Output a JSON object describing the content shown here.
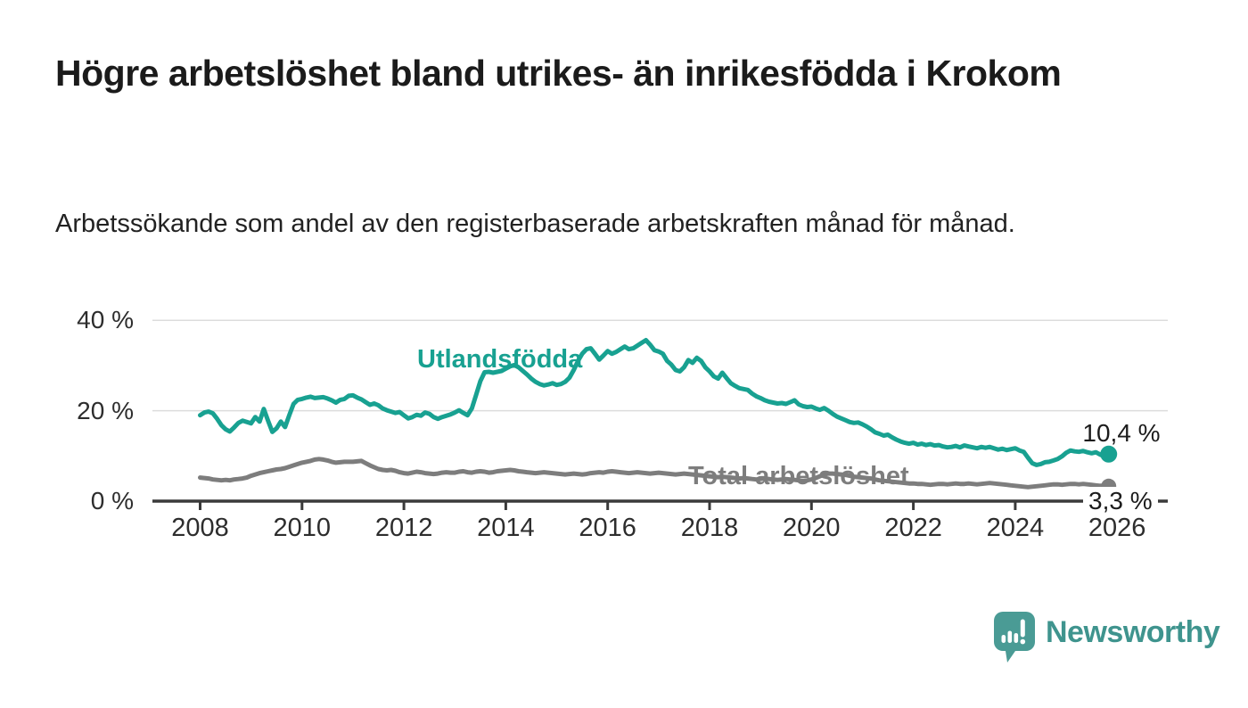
{
  "header": {
    "title": "Högre arbetslöshet bland utrikes- än inrikesfödda i Krokom",
    "subtitle": "Arbetssökande som andel av den registerbaserade arbetskraften månad för månad."
  },
  "chart_data": {
    "type": "line",
    "title": "Högre arbetslöshet bland utrikes- än inrikesfödda i Krokom",
    "subtitle": "Arbetssökande som andel av den registerbaserade arbetskraften månad för månad.",
    "unit": "%",
    "frequency": "monthly",
    "x_start": "2008-01",
    "x_end": "2025-11",
    "x_ticks": [
      2008,
      2010,
      2012,
      2014,
      2016,
      2018,
      2020,
      2022,
      2024,
      2026
    ],
    "y_ticks": [
      {
        "value": 0,
        "label": "0 %"
      },
      {
        "value": 20,
        "label": "20 %"
      },
      {
        "value": 40,
        "label": "40 %"
      }
    ],
    "ylim": [
      0,
      43
    ],
    "grid": "horizontal",
    "legend_position": "inline-labels",
    "axis_color": "#3a3a3a",
    "gridline_color": "#dcdcdc",
    "series": [
      {
        "name": "Utlandsfödda",
        "color": "#18a191",
        "end_value": 10.4,
        "end_label": "10,4 %",
        "values": [
          19.0,
          19.6,
          19.8,
          19.4,
          18.2,
          16.8,
          15.9,
          15.4,
          16.3,
          17.3,
          17.8,
          17.5,
          17.2,
          18.6,
          17.6,
          20.4,
          17.8,
          15.3,
          16.1,
          17.6,
          16.4,
          19.0,
          21.5,
          22.4,
          22.6,
          22.9,
          23.1,
          22.8,
          22.9,
          23.0,
          22.7,
          22.3,
          21.8,
          22.4,
          22.6,
          23.3,
          23.4,
          22.9,
          22.5,
          21.9,
          21.3,
          21.6,
          21.2,
          20.5,
          20.1,
          19.8,
          19.5,
          19.7,
          19.0,
          18.3,
          18.6,
          19.1,
          18.9,
          19.6,
          19.3,
          18.6,
          18.2,
          18.6,
          18.9,
          19.2,
          19.6,
          20.1,
          19.5,
          19.0,
          20.5,
          23.5,
          26.5,
          28.5,
          28.6,
          28.4,
          28.6,
          28.8,
          29.3,
          29.8,
          30.1,
          29.6,
          28.8,
          28.0,
          27.1,
          26.4,
          25.9,
          25.6,
          25.8,
          26.1,
          25.7,
          25.9,
          26.4,
          27.3,
          29.0,
          31.0,
          32.6,
          33.6,
          33.8,
          32.6,
          31.3,
          32.2,
          33.2,
          32.6,
          33.0,
          33.6,
          34.2,
          33.6,
          33.8,
          34.4,
          35.0,
          35.6,
          34.6,
          33.4,
          33.1,
          32.6,
          31.0,
          30.2,
          29.0,
          28.7,
          29.6,
          31.2,
          30.6,
          31.7,
          31.0,
          29.6,
          28.7,
          27.6,
          27.1,
          28.4,
          27.2,
          26.1,
          25.5,
          25.0,
          24.8,
          24.6,
          23.8,
          23.2,
          22.8,
          22.3,
          22.0,
          21.8,
          21.6,
          21.7,
          21.5,
          21.9,
          22.3,
          21.4,
          21.0,
          20.8,
          20.9,
          20.5,
          20.2,
          20.6,
          20.0,
          19.3,
          18.7,
          18.3,
          17.9,
          17.5,
          17.3,
          17.4,
          17.0,
          16.5,
          15.9,
          15.2,
          14.9,
          14.5,
          14.7,
          14.1,
          13.6,
          13.2,
          12.9,
          12.7,
          12.9,
          12.5,
          12.7,
          12.4,
          12.6,
          12.3,
          12.4,
          12.1,
          11.9,
          12.0,
          12.2,
          11.9,
          12.3,
          12.1,
          11.9,
          11.7,
          12.0,
          11.8,
          12.0,
          11.7,
          11.4,
          11.6,
          11.3,
          11.5,
          11.7,
          11.2,
          10.9,
          9.6,
          8.4,
          8.0,
          8.2,
          8.6,
          8.7,
          9.0,
          9.3,
          9.9,
          10.7,
          11.2,
          11.0,
          10.9,
          11.1,
          10.8,
          10.6,
          10.8,
          10.3,
          9.9,
          10.4
        ]
      },
      {
        "name": "Total arbetslöshet",
        "color": "#7d7d7d",
        "end_value": 3.3,
        "end_label": "3,3 %",
        "values": [
          5.2,
          5.1,
          5.0,
          4.8,
          4.7,
          4.6,
          4.7,
          4.6,
          4.8,
          4.9,
          5.0,
          5.2,
          5.6,
          5.9,
          6.2,
          6.4,
          6.6,
          6.8,
          7.0,
          7.1,
          7.3,
          7.6,
          7.9,
          8.2,
          8.5,
          8.7,
          8.9,
          9.2,
          9.3,
          9.2,
          9.0,
          8.7,
          8.5,
          8.6,
          8.7,
          8.7,
          8.7,
          8.8,
          8.9,
          8.4,
          7.9,
          7.5,
          7.1,
          6.9,
          6.8,
          6.9,
          6.7,
          6.4,
          6.2,
          6.1,
          6.3,
          6.5,
          6.4,
          6.2,
          6.1,
          6.0,
          6.1,
          6.3,
          6.4,
          6.3,
          6.3,
          6.5,
          6.6,
          6.4,
          6.3,
          6.5,
          6.6,
          6.5,
          6.3,
          6.4,
          6.6,
          6.7,
          6.8,
          6.9,
          6.8,
          6.6,
          6.5,
          6.4,
          6.3,
          6.2,
          6.3,
          6.4,
          6.3,
          6.2,
          6.1,
          6.0,
          5.9,
          6.0,
          6.1,
          6.0,
          5.9,
          6.0,
          6.2,
          6.3,
          6.4,
          6.3,
          6.5,
          6.6,
          6.5,
          6.4,
          6.3,
          6.2,
          6.3,
          6.4,
          6.3,
          6.2,
          6.1,
          6.2,
          6.3,
          6.2,
          6.1,
          6.0,
          5.9,
          6.0,
          6.1,
          6.0,
          5.9,
          5.8,
          5.7,
          5.6,
          5.5,
          5.4,
          5.3,
          5.4,
          5.3,
          5.2,
          5.1,
          5.0,
          5.1,
          5.0,
          4.9,
          4.8,
          4.9,
          5.0,
          4.9,
          4.8,
          4.7,
          4.8,
          4.9,
          4.8,
          4.7,
          4.6,
          4.5,
          4.6,
          4.8,
          5.1,
          5.5,
          5.9,
          6.1,
          6.1,
          6.0,
          5.9,
          5.8,
          5.6,
          5.4,
          5.3,
          5.2,
          5.1,
          5.0,
          4.8,
          4.6,
          4.5,
          4.4,
          4.3,
          4.2,
          4.1,
          4.0,
          3.9,
          3.9,
          3.8,
          3.8,
          3.7,
          3.6,
          3.7,
          3.8,
          3.8,
          3.7,
          3.8,
          3.9,
          3.8,
          3.8,
          3.9,
          3.8,
          3.7,
          3.8,
          3.9,
          4.0,
          3.9,
          3.8,
          3.7,
          3.6,
          3.5,
          3.4,
          3.3,
          3.2,
          3.1,
          3.2,
          3.3,
          3.4,
          3.5,
          3.6,
          3.7,
          3.7,
          3.6,
          3.7,
          3.8,
          3.8,
          3.7,
          3.8,
          3.7,
          3.6,
          3.5,
          3.4,
          3.4,
          3.3
        ]
      }
    ]
  },
  "branding": {
    "logo_text": "Newsworthy",
    "logo_color": "#3f948e",
    "logo_bubble_color": "#4a9b95",
    "logo_icon": "speech-bubble-bar-chart-icon"
  }
}
